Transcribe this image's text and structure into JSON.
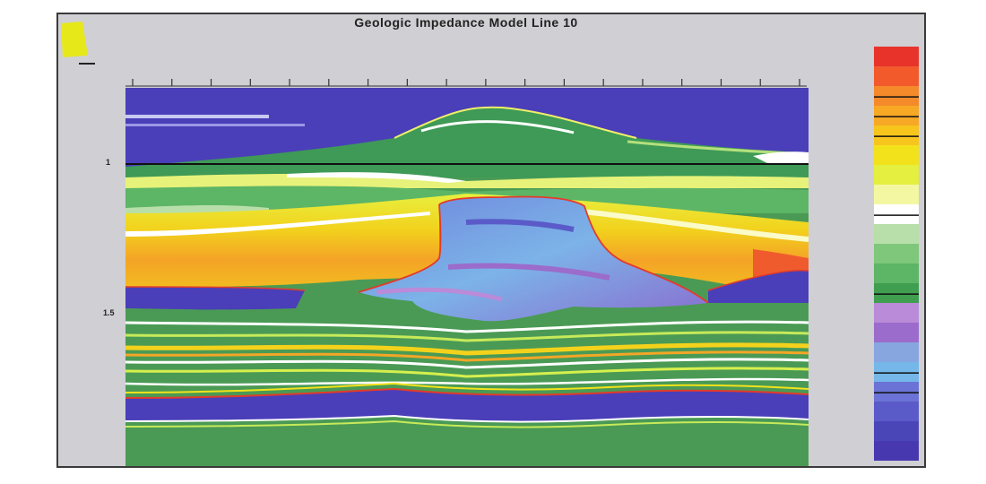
{
  "title": "Geologic Impedance Model   Line 10",
  "colorbar": {
    "title": "",
    "colors": [
      "#e8332b",
      "#f25a2c",
      "#f58a2a",
      "#f7a824",
      "#f7c51c",
      "#f2e21b",
      "#e4ef3f",
      "#f4f7a2",
      "#ffffff",
      "#b8dfa9",
      "#7ec77b",
      "#5db566",
      "#3f9e50",
      "#b98bd8",
      "#9b6ccb",
      "#87a6e0",
      "#74b7e8",
      "#6b73d6",
      "#5a5bc9",
      "#4b46b8",
      "#4838b0"
    ]
  },
  "horizons": {
    "top": "",
    "reef": "",
    "right": "",
    "lower1": "",
    "lower2": ""
  },
  "axis": {
    "y_tick_1": "1",
    "y_tick_15": "1.5",
    "y_label": ""
  }
}
